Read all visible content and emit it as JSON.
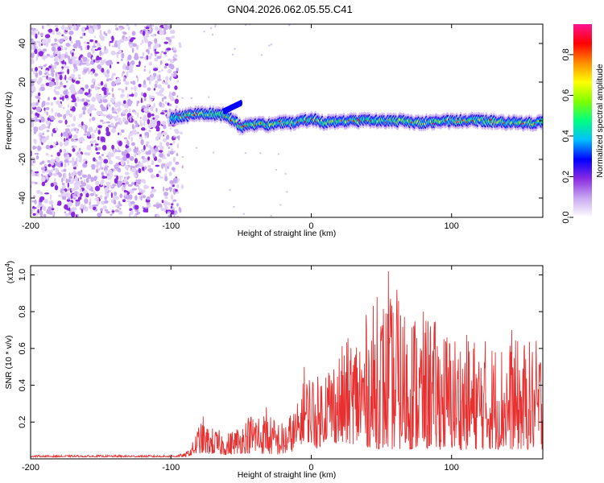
{
  "title": "GN04.2026.062.05.55.C41",
  "chart_data": [
    {
      "type": "heatmap",
      "xlabel": "Height of straight line (km)",
      "ylabel": "Frequency (Hz)",
      "xlim": [
        -200,
        165
      ],
      "ylim": [
        -50,
        50
      ],
      "xticks": [
        -200,
        -100,
        0,
        100
      ],
      "yticks": [
        -40,
        -20,
        0,
        20,
        40
      ],
      "xtick_labels": [
        "-200",
        "-100",
        "0",
        "100"
      ],
      "ytick_labels": [
        "-40",
        "-20",
        "0",
        "20",
        "40"
      ],
      "noise_region_x": [
        -200,
        -95
      ],
      "band_center_x": [
        -100,
        -80,
        -60,
        -50,
        -40,
        -30,
        -20,
        -10,
        0,
        10,
        20,
        40,
        60,
        80,
        100,
        120,
        140,
        165
      ],
      "band_center_y": [
        1,
        4,
        3,
        -3,
        -2,
        -2,
        -1,
        -1,
        1,
        -1,
        0,
        0,
        0,
        -1,
        0,
        0,
        -1,
        -1
      ],
      "colorbar": {
        "label": "Normalized spectral amplitude",
        "ticks": [
          0.0,
          0.2,
          0.4,
          0.6,
          0.8
        ],
        "tick_labels": [
          "0.0",
          "0.2",
          "0.4",
          "0.6",
          "0.8"
        ],
        "range": [
          0,
          0.95
        ],
        "colors": [
          "#ffffff",
          "#c8a8f0",
          "#8a2be2",
          "#0000ff",
          "#00bfff",
          "#00ff80",
          "#7fff00",
          "#ffff00",
          "#ff8c00",
          "#ff0000",
          "#ff1493"
        ]
      }
    },
    {
      "type": "line",
      "xlabel": "Height of straight line (km)",
      "ylabel": "SNR (10 * v/v)",
      "multiplier_label": "(x10",
      "multiplier_exp": "4",
      "multiplier_close": ")",
      "xlim": [
        -200,
        165
      ],
      "ylim": [
        0,
        1.05
      ],
      "xticks": [
        -200,
        -100,
        0,
        100
      ],
      "yticks": [
        0.2,
        0.4,
        0.6,
        0.8,
        1.0
      ],
      "xtick_labels": [
        "-200",
        "-100",
        "0",
        "100"
      ],
      "ytick_labels": [
        "0.2",
        "0.4",
        "0.6",
        "0.8",
        "1.0"
      ],
      "color": "#e83030",
      "envelope": {
        "x": [
          -200,
          -100,
          -90,
          -85,
          -80,
          -60,
          -50,
          -40,
          -20,
          -10,
          -5,
          0,
          5,
          10,
          20,
          30,
          50,
          70,
          100,
          130,
          165
        ],
        "lo": [
          0.01,
          0.01,
          0.01,
          0.02,
          0.03,
          0.02,
          0.03,
          0.03,
          0.02,
          0.05,
          0.1,
          0.08,
          0.05,
          0.1,
          0.08,
          0.08,
          0.05,
          0.05,
          0.05,
          0.05,
          0.05
        ],
        "hi": [
          0.02,
          0.02,
          0.03,
          0.08,
          0.2,
          0.14,
          0.2,
          0.28,
          0.2,
          0.3,
          0.45,
          0.5,
          0.45,
          0.55,
          0.6,
          0.7,
          0.9,
          0.85,
          0.7,
          0.65,
          0.65
        ]
      },
      "peaks": [
        {
          "x": 55,
          "y": 1.02
        },
        {
          "x": 47,
          "y": 0.88
        },
        {
          "x": 61,
          "y": 0.92
        },
        {
          "x": 85,
          "y": 0.72
        },
        {
          "x": 143,
          "y": 0.7
        },
        {
          "x": -5,
          "y": 0.5
        },
        {
          "x": -77,
          "y": 0.23
        },
        {
          "x": -32,
          "y": 0.28
        }
      ]
    }
  ]
}
